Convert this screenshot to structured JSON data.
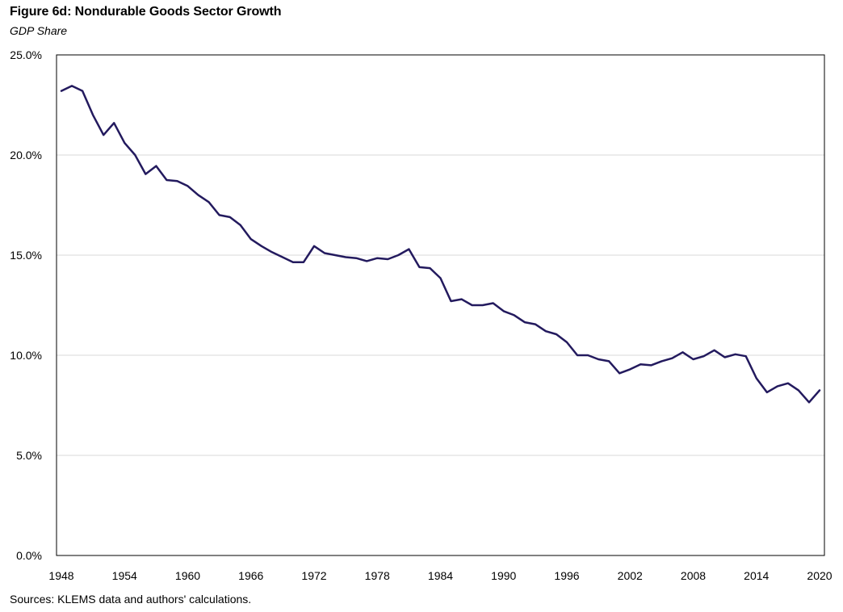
{
  "chart_data": {
    "type": "line",
    "title": "Figure 6d: Nondurable Goods Sector Growth",
    "subtitle": "GDP Share",
    "source": "Sources: KLEMS data and authors' calculations.",
    "xlabel": "",
    "ylabel": "",
    "xlim": [
      1948,
      2020
    ],
    "ylim": [
      0,
      25
    ],
    "grid": "horizontal",
    "line_color": "#231a5e",
    "y_ticks": [
      {
        "value": 0,
        "label": "0.0%"
      },
      {
        "value": 5,
        "label": "5.0%"
      },
      {
        "value": 10,
        "label": "10.0%"
      },
      {
        "value": 15,
        "label": "15.0%"
      },
      {
        "value": 20,
        "label": "20.0%"
      },
      {
        "value": 25,
        "label": "25.0%"
      }
    ],
    "x_ticks": [
      {
        "value": 1948,
        "label": "1948"
      },
      {
        "value": 1954,
        "label": "1954"
      },
      {
        "value": 1960,
        "label": "1960"
      },
      {
        "value": 1966,
        "label": "1966"
      },
      {
        "value": 1972,
        "label": "1972"
      },
      {
        "value": 1978,
        "label": "1978"
      },
      {
        "value": 1984,
        "label": "1984"
      },
      {
        "value": 1990,
        "label": "1990"
      },
      {
        "value": 1996,
        "label": "1996"
      },
      {
        "value": 2002,
        "label": "2002"
      },
      {
        "value": 2008,
        "label": "2008"
      },
      {
        "value": 2014,
        "label": "2014"
      },
      {
        "value": 2020,
        "label": "2020"
      }
    ],
    "series": [
      {
        "x": [
          1948,
          1949,
          1950,
          1951,
          1952,
          1953,
          1954,
          1955,
          1956,
          1957,
          1958,
          1959,
          1960,
          1961,
          1962,
          1963,
          1964,
          1965,
          1966,
          1967,
          1968,
          1969,
          1970,
          1971,
          1972,
          1973,
          1974,
          1975,
          1976,
          1977,
          1978,
          1979,
          1980,
          1981,
          1982,
          1983,
          1984,
          1985,
          1986,
          1987,
          1988,
          1989,
          1990,
          1991,
          1992,
          1993,
          1994,
          1995,
          1996,
          1997,
          1998,
          1999,
          2000,
          2001,
          2002,
          2003,
          2004,
          2005,
          2006,
          2007,
          2008,
          2009,
          2010,
          2011,
          2012,
          2013,
          2014,
          2015,
          2016,
          2017,
          2018,
          2019,
          2020
        ],
        "values": [
          23.2,
          23.45,
          23.2,
          22.0,
          21.0,
          21.6,
          20.6,
          20.0,
          19.05,
          19.45,
          18.75,
          18.7,
          18.45,
          18.0,
          17.65,
          17.0,
          16.9,
          16.5,
          15.8,
          15.45,
          15.15,
          14.9,
          14.65,
          14.65,
          15.45,
          15.1,
          15.0,
          14.9,
          14.85,
          14.7,
          14.85,
          14.8,
          15.0,
          15.3,
          14.4,
          14.35,
          13.85,
          12.7,
          12.8,
          12.5,
          12.5,
          12.6,
          12.2,
          12.0,
          11.65,
          11.55,
          11.2,
          11.05,
          10.65,
          10.0,
          10.0,
          9.8,
          9.7,
          9.1,
          9.3,
          9.55,
          9.5,
          9.7,
          9.85,
          10.15,
          9.8,
          9.95,
          10.25,
          9.9,
          10.05,
          9.95,
          8.85,
          8.15,
          8.45,
          8.6,
          8.25,
          7.65,
          8.25
        ]
      }
    ]
  }
}
